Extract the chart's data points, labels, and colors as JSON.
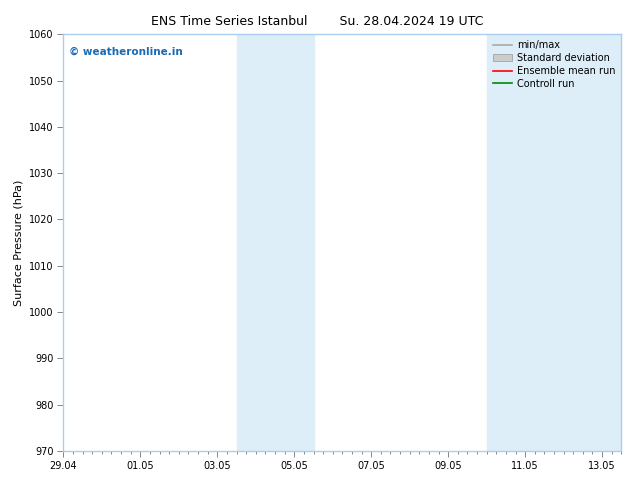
{
  "title_left": "ENS Time Series Istanbul",
  "title_right": "Su. 28.04.2024 19 UTC",
  "ylabel": "Surface Pressure (hPa)",
  "ylim": [
    970,
    1060
  ],
  "yticks": [
    970,
    980,
    990,
    1000,
    1010,
    1020,
    1030,
    1040,
    1050,
    1060
  ],
  "xtick_labels": [
    "29.04",
    "01.05",
    "03.05",
    "05.05",
    "07.05",
    "09.05",
    "11.05",
    "13.05"
  ],
  "xtick_positions": [
    0,
    2,
    4,
    6,
    8,
    10,
    12,
    14
  ],
  "xlim": [
    0,
    14.5
  ],
  "shaded_bands": [
    {
      "x_start": 4.5,
      "x_end": 5.5,
      "color": "#ddeef8"
    },
    {
      "x_start": 5.5,
      "x_end": 6.5,
      "color": "#ddeef8"
    },
    {
      "x_start": 11.0,
      "x_end": 12.0,
      "color": "#ddeef8"
    },
    {
      "x_start": 12.0,
      "x_end": 14.5,
      "color": "#ddeef8"
    }
  ],
  "watermark_text": "© weatheronline.in",
  "watermark_color": "#1a6ab5",
  "legend_items": [
    {
      "label": "min/max",
      "color": "#aaaaaa",
      "type": "line"
    },
    {
      "label": "Standard deviation",
      "color": "#cccccc",
      "type": "patch"
    },
    {
      "label": "Ensemble mean run",
      "color": "#ff0000",
      "type": "line"
    },
    {
      "label": "Controll run",
      "color": "#008800",
      "type": "line"
    }
  ],
  "bg_color": "#ffffff",
  "plot_bg_color": "#ffffff",
  "frame_color": "#aaccee",
  "title_fontsize": 9,
  "label_fontsize": 8,
  "tick_fontsize": 7,
  "legend_fontsize": 7
}
